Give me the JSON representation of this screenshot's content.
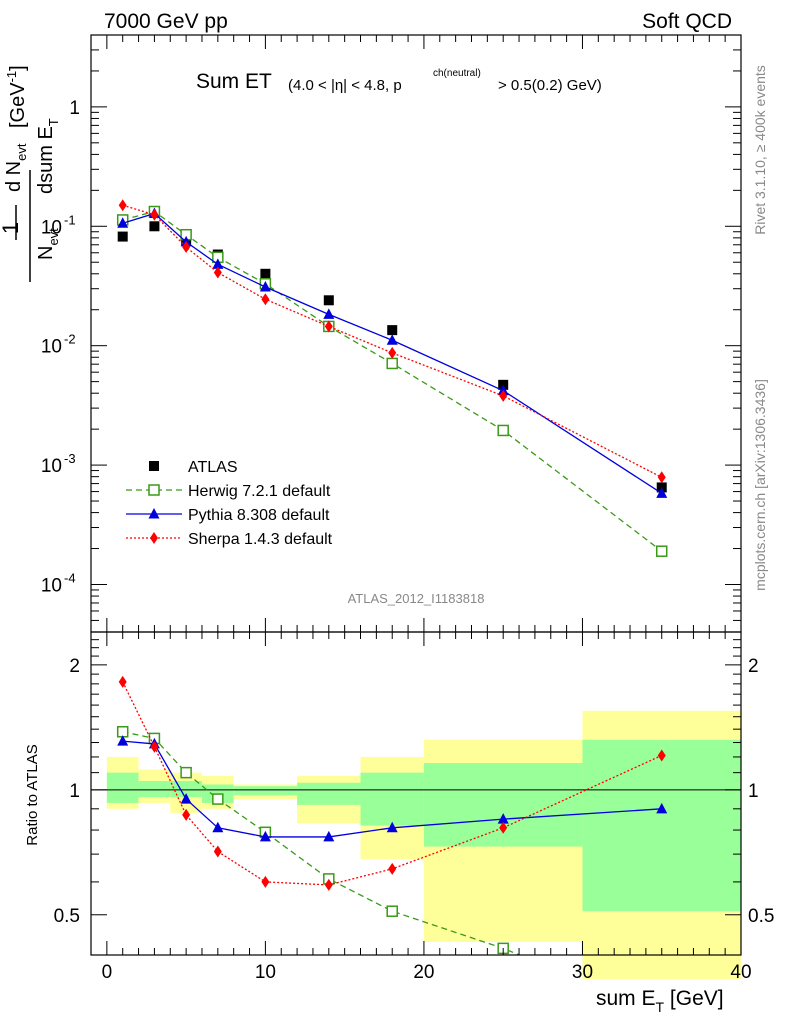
{
  "header": {
    "left": "7000 GeV pp",
    "right": "Soft QCD"
  },
  "side": {
    "rivet": "Rivet 3.1.10, ≥ 400k events",
    "mcplots": "mcplots.cern.ch [arXiv:1306.3436]"
  },
  "chart_data": [
    {
      "type": "scatter",
      "title": "Sum ET",
      "title_cut": "(4.0 < |η| < 4.8, p",
      "title_cut_sup": "ch(neutral)",
      "title_cut_end": " > 0.5(0.2) GeV)",
      "analysis_tag": "ATLAS_2012_I1183818",
      "ylabel": "1/N_evt dN_evt/dsum E_T [GeV^-1]",
      "yscale": "log",
      "ylim": [
        4e-05,
        4
      ],
      "xlim": [
        -1,
        40
      ],
      "ytick_labels": [
        "1",
        "10^-1",
        "10^-2",
        "10^-3",
        "10^-4"
      ],
      "grid": false,
      "legend_position": "bottom-left",
      "x": [
        1,
        3,
        5,
        7,
        10,
        14,
        18,
        25,
        35
      ],
      "series": [
        {
          "name": "ATLAS",
          "color": "#000000",
          "marker": "square",
          "values": [
            0.082,
            0.1,
            0.077,
            0.058,
            0.04,
            0.024,
            0.0135,
            0.0047,
            0.00065
          ]
        },
        {
          "name": "Herwig 7.2.1 default",
          "color": "#3a9a17",
          "marker": "open-square",
          "line": "dashed",
          "values": [
            0.113,
            0.133,
            0.085,
            0.055,
            0.033,
            0.0145,
            0.0071,
            0.00195,
            0.00019
          ]
        },
        {
          "name": "Pythia 8.308 default",
          "color": "#0000dd",
          "marker": "triangle",
          "line": "solid",
          "values": [
            0.106,
            0.128,
            0.074,
            0.048,
            0.031,
            0.0183,
            0.0111,
            0.0042,
            0.00058
          ]
        },
        {
          "name": "Sherpa 1.4.3 default",
          "color": "#ff0000",
          "marker": "diamond",
          "line": "dotted",
          "values": [
            0.15,
            0.125,
            0.067,
            0.041,
            0.0245,
            0.0145,
            0.0087,
            0.0038,
            0.00079
          ]
        }
      ]
    },
    {
      "type": "line",
      "ylabel": "Ratio to ATLAS",
      "xlabel": "sum E_T [GeV]",
      "yscale": "log",
      "ylim": [
        0.4,
        2.4
      ],
      "xlim": [
        -1,
        40
      ],
      "xtick_labels": [
        "0",
        "10",
        "20",
        "30",
        "40"
      ],
      "ytick_labels": [
        "0.5",
        "1",
        "2"
      ],
      "reference": 1,
      "bands": [
        {
          "xlo": 0,
          "xhi": 2,
          "green": [
            0.93,
            1.1
          ],
          "yellow": [
            0.9,
            1.2
          ]
        },
        {
          "xlo": 2,
          "xhi": 4,
          "green": [
            0.96,
            1.05
          ],
          "yellow": [
            0.93,
            1.12
          ]
        },
        {
          "xlo": 4,
          "xhi": 6,
          "green": [
            0.96,
            1.05
          ],
          "yellow": [
            0.88,
            1.1
          ]
        },
        {
          "xlo": 6,
          "xhi": 8,
          "green": [
            0.93,
            1.03
          ],
          "yellow": [
            0.9,
            1.08
          ]
        },
        {
          "xlo": 8,
          "xhi": 12,
          "green": [
            0.97,
            1.02
          ],
          "yellow": [
            0.95,
            1.03
          ]
        },
        {
          "xlo": 12,
          "xhi": 16,
          "green": [
            0.92,
            1.04
          ],
          "yellow": [
            0.83,
            1.08
          ]
        },
        {
          "xlo": 16,
          "xhi": 20,
          "green": [
            0.82,
            1.1
          ],
          "yellow": [
            0.68,
            1.2
          ]
        },
        {
          "xlo": 20,
          "xhi": 30,
          "green": [
            0.73,
            1.16
          ],
          "yellow": [
            0.43,
            1.32
          ]
        },
        {
          "xlo": 30,
          "xhi": 40,
          "green": [
            0.51,
            1.32
          ],
          "yellow": [
            0.35,
            1.55
          ]
        }
      ],
      "x": [
        1,
        3,
        5,
        7,
        10,
        14,
        18,
        25,
        35
      ],
      "series": [
        {
          "name": "Herwig 7.2.1 default",
          "color": "#3a9a17",
          "marker": "open-square",
          "line": "dashed",
          "values": [
            1.38,
            1.33,
            1.1,
            0.95,
            0.79,
            0.61,
            0.51,
            0.415,
            0.29
          ]
        },
        {
          "name": "Pythia 8.308 default",
          "color": "#0000dd",
          "marker": "triangle",
          "line": "solid",
          "values": [
            1.31,
            1.29,
            0.95,
            0.81,
            0.77,
            0.77,
            0.81,
            0.85,
            0.9
          ]
        },
        {
          "name": "Sherpa 1.4.3 default",
          "color": "#ff0000",
          "marker": "diamond",
          "line": "dotted",
          "values": [
            1.82,
            1.27,
            0.87,
            0.71,
            0.6,
            0.59,
            0.645,
            0.81,
            1.21
          ]
        }
      ]
    }
  ]
}
